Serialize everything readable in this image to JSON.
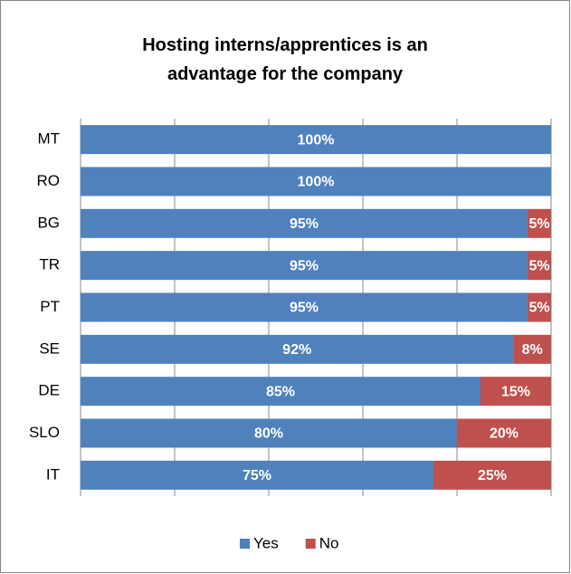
{
  "chart_data": {
    "type": "stacked-bar-horizontal",
    "title": "Hosting interns/apprentices is an advantage for the company",
    "categories": [
      "MT",
      "RO",
      "BG",
      "TR",
      "PT",
      "SE",
      "DE",
      "SLO",
      "IT"
    ],
    "series": [
      {
        "name": "Yes",
        "color": "#4f81bd",
        "values": [
          100,
          100,
          95,
          95,
          95,
          92,
          85,
          80,
          75
        ],
        "value_labels": [
          "100%",
          "100%",
          "95%",
          "95%",
          "95%",
          "92%",
          "85%",
          "80%",
          "75%"
        ]
      },
      {
        "name": "No",
        "color": "#c0504d",
        "values": [
          0,
          0,
          5,
          5,
          5,
          8,
          15,
          20,
          25
        ],
        "value_labels": [
          null,
          null,
          "5%",
          "5%",
          "5%",
          "8%",
          "15%",
          "20%",
          "25%"
        ]
      }
    ],
    "xlim": [
      0,
      100
    ],
    "xticks": [
      0,
      20,
      40,
      60,
      80,
      100
    ],
    "grid": true,
    "legend": "bottom"
  }
}
